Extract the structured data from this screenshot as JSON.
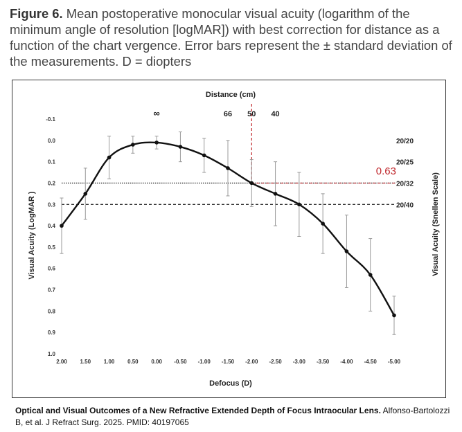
{
  "caption": {
    "label": "Figure 6.",
    "text": "Mean postoperative monocular visual acuity (logarithm of the minimum angle of resolution [logMAR]) with best correction for distance as a function of the chart vergence. Error bars represent the ± standard deviation of the measurements. D = diopters"
  },
  "footer": {
    "title": "Optical and Visual Outcomes of a New Refractive Extended Depth of Focus Intraocular Lens.",
    "citation": "Alfonso-Bartolozzi B, et al. J Refract Surg. 2025.  PMID: 40197065"
  },
  "chart_data": {
    "type": "line",
    "title": "",
    "xlabel": "Defocus (D)",
    "ylabel": "Visual Acuity (LogMAR )",
    "y2label": "Visual Acuity (Snellen Scale)",
    "top_axis_label": "Distance (cm)",
    "top_ticks": [
      {
        "label": "∞",
        "defocus": 0.0
      },
      {
        "label": "66",
        "defocus": -1.5
      },
      {
        "label": "50",
        "defocus": -2.0
      },
      {
        "label": "40",
        "defocus": -2.5
      }
    ],
    "x_ticks": [
      "2.00",
      "1.50",
      "1.00",
      "0.50",
      "0.00",
      "-0.50",
      "-1.00",
      "-1.50",
      "-2.00",
      "-2.50",
      "-3.00",
      "-3.50",
      "-4.00",
      "-4.50",
      "-5.00"
    ],
    "x_values": [
      2.0,
      1.5,
      1.0,
      0.5,
      0.0,
      -0.5,
      -1.0,
      -1.5,
      -2.0,
      -2.5,
      -3.0,
      -3.5,
      -4.0,
      -4.5,
      -5.0
    ],
    "xlim": [
      2.0,
      -5.0
    ],
    "y_ticks": [
      "-0.1",
      "0.0",
      "0.1",
      "0.2",
      "0.3",
      "0.4",
      "0.5",
      "0.6",
      "0.7",
      "0.8",
      "0.9",
      "1.0"
    ],
    "ylim": [
      -0.1,
      1.0
    ],
    "y_inverted": true,
    "series": [
      {
        "values": [
          0.4,
          0.25,
          0.08,
          0.02,
          0.01,
          0.03,
          0.07,
          0.13,
          0.2,
          0.25,
          0.3,
          0.39,
          0.52,
          0.63,
          0.82
        ],
        "sd": [
          0.13,
          0.12,
          0.1,
          0.04,
          0.03,
          0.07,
          0.08,
          0.13,
          0.11,
          0.15,
          0.15,
          0.14,
          0.17,
          0.17,
          0.09
        ]
      }
    ],
    "snellen_labels": [
      {
        "label": "20/20",
        "logmar": 0.0
      },
      {
        "label": "20/25",
        "logmar": 0.1
      },
      {
        "label": "20/32",
        "logmar": 0.2
      },
      {
        "label": "20/40",
        "logmar": 0.3
      }
    ],
    "reference_lines": [
      {
        "logmar": 0.2,
        "style": "dotted"
      },
      {
        "logmar": 0.3,
        "style": "dashed"
      }
    ],
    "annotation": {
      "text": "0.63",
      "logmar": 0.2,
      "defocus": -2.0,
      "color": "#c0282d"
    },
    "grid": false
  }
}
